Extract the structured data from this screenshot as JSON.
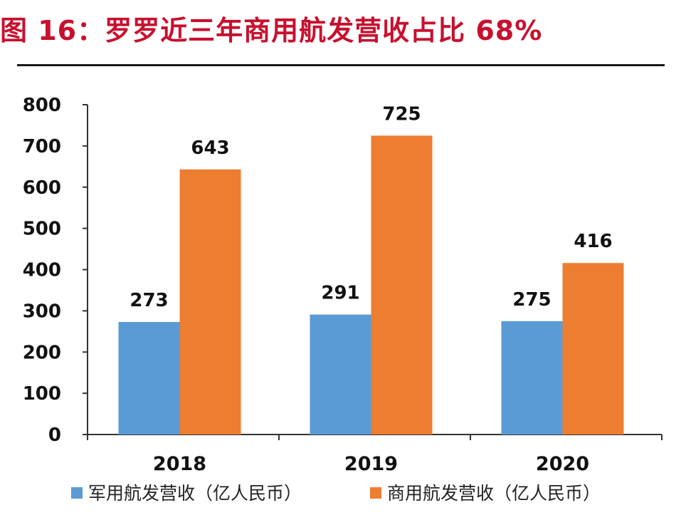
{
  "title": "图 16：罗罗近三年商用航发营收占比 68%",
  "chart_data": {
    "type": "bar",
    "title": "图 16：罗罗近三年商用航发营收占比 68%",
    "categories": [
      "2018",
      "2019",
      "2020"
    ],
    "series": [
      {
        "name": "军用航发营收（亿人民币）",
        "values": [
          273,
          291,
          275
        ],
        "color": "#5b9bd5"
      },
      {
        "name": "商用航发营收（亿人民币）",
        "values": [
          643,
          725,
          416
        ],
        "color": "#ed7d31"
      }
    ],
    "ylim": [
      0,
      800
    ],
    "yticks": [
      0,
      100,
      200,
      300,
      400,
      500,
      600,
      700,
      800
    ],
    "grid": false,
    "legend": "bottom"
  }
}
